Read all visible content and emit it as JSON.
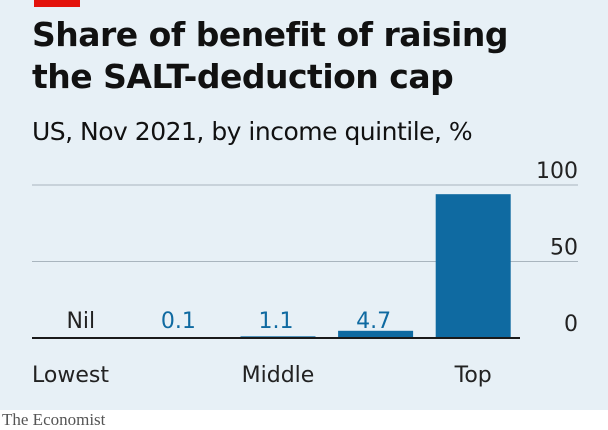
{
  "header": {
    "title_line1": "Share of benefit of raising",
    "title_line2": "the SALT-deduction cap",
    "subtitle": "US, Nov 2021, by income quintile, %"
  },
  "footer": {
    "source": "The Economist"
  },
  "colors": {
    "bar": "#0f6aa1",
    "value_label": "#0f6aa1",
    "nil_label": "#222222",
    "gridline": "#a9b5be",
    "baseline": "#1a1a1a",
    "tick_label": "#222222",
    "background": "#e7f0f6",
    "accent": "#e3120b"
  },
  "chart_data": {
    "type": "bar",
    "title": "Share of benefit of raising the SALT-deduction cap",
    "subtitle": "US, Nov 2021, by income quintile, %",
    "categories": [
      "Lowest",
      "",
      "Middle",
      "",
      "Top"
    ],
    "values": [
      0,
      0.1,
      1.1,
      4.7,
      94
    ],
    "data_labels": [
      "Nil",
      "0.1",
      "1.1",
      "4.7",
      ""
    ],
    "ylim": [
      0,
      100
    ],
    "yticks": [
      0,
      50,
      100
    ],
    "y_axis_side": "right",
    "grid": true
  }
}
